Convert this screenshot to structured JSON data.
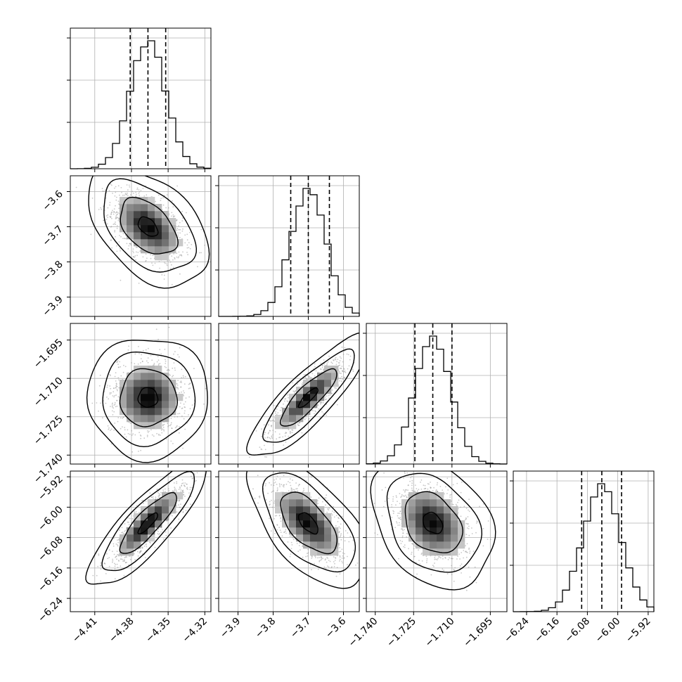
{
  "chart_data": {
    "type": "corner",
    "parameters": [
      {
        "ticks": [
          -4.41,
          -4.38,
          -4.35,
          -4.32
        ],
        "tick_labels": [
          "−4.41",
          "−4.38",
          "−4.35",
          "−4.32"
        ],
        "range": [
          -4.43,
          -4.315
        ],
        "mean": -4.3665,
        "sigma": 0.0145,
        "quantiles": [
          -4.381,
          -4.3665,
          -4.352
        ]
      },
      {
        "ticks": [
          -3.9,
          -3.8,
          -3.7,
          -3.6
        ],
        "tick_labels": [
          "−3.9",
          "−3.8",
          "−3.7",
          "−3.6"
        ],
        "range": [
          -3.955,
          -3.555
        ],
        "mean": -3.7,
        "sigma": 0.05,
        "quantiles": [
          -3.75,
          -3.7,
          -3.64
        ]
      },
      {
        "ticks": [
          -1.74,
          -1.725,
          -1.71,
          -1.695
        ],
        "tick_labels": [
          "−1.740",
          "−1.725",
          "−1.710",
          "−1.695"
        ],
        "range": [
          -1.7435,
          -1.6885
        ],
        "mean": -1.7175,
        "sigma": 0.007,
        "quantiles": [
          -1.7245,
          -1.7175,
          -1.71
        ]
      },
      {
        "ticks": [
          -6.24,
          -6.16,
          -6.08,
          -6.0,
          -5.92
        ],
        "tick_labels": [
          "−6.24",
          "−6.16",
          "−6.08",
          "−6.00",
          "−5.92"
        ],
        "range": [
          -6.275,
          -5.905
        ],
        "mean": -6.042,
        "sigma": 0.05,
        "quantiles": [
          -6.095,
          -6.042,
          -5.99
        ]
      }
    ],
    "correlations": [
      {
        "row": 1,
        "col": 0,
        "rho": -0.45
      },
      {
        "row": 2,
        "col": 0,
        "rho": 0.0
      },
      {
        "row": 2,
        "col": 1,
        "rho": 0.85
      },
      {
        "row": 3,
        "col": 0,
        "rho": 0.85
      },
      {
        "row": 3,
        "col": 1,
        "rho": -0.6
      },
      {
        "row": 3,
        "col": 2,
        "rho": -0.3
      }
    ],
    "grid": true,
    "colors": {
      "contour": "#000000",
      "scatter": "#9a9a9a",
      "density_dark": "#000000",
      "density_light": "#ffffff",
      "grid": "#b0b0b0"
    }
  }
}
